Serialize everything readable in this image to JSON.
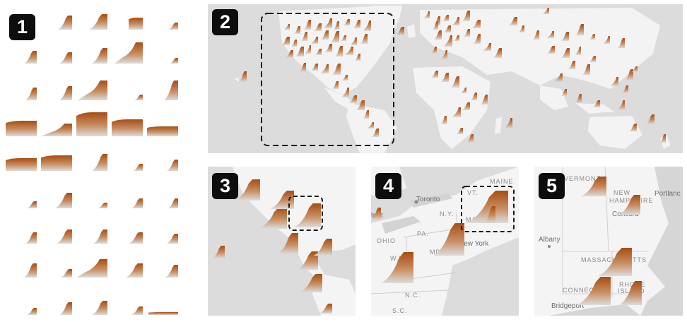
{
  "panels": [
    {
      "id": "1",
      "label": "1"
    },
    {
      "id": "2",
      "label": "2"
    },
    {
      "id": "3",
      "label": "3"
    },
    {
      "id": "4",
      "label": "4"
    },
    {
      "id": "5",
      "label": "5"
    }
  ],
  "map_labels": {
    "panel4": {
      "maine": "MAINE",
      "toronto": "Toronto",
      "ny": "N.Y.",
      "pa": "PA.",
      "ohio": "OHIO",
      "md": "MD",
      "new_york": "New York",
      "wva": "W.VA.",
      "nc": "N.C.",
      "sc": "S.C.",
      "vt": "VT.",
      "mass": "MASS.",
      "troit": "troit"
    },
    "panel5": {
      "vermont": "VERMONT",
      "new_hampshire_1": "NEW",
      "new_hampshire_2": "HAMPSHIRE",
      "portland": "Portlanc",
      "concord": "Concord",
      "albany": "Albany",
      "massachusetts": "MASSACHUSETTS",
      "connecticut": "CONNECTI",
      "rhode_1": "RHODE",
      "rhode_2": "ISLAND",
      "bridgeport": "Bridgeport"
    }
  },
  "colors": {
    "glyph_dark": "#b4581c",
    "glyph_light": "#d3d3d3",
    "land": "#f2f2f2",
    "water": "#dcdcdc",
    "selection_box": "#1a1a1a"
  }
}
